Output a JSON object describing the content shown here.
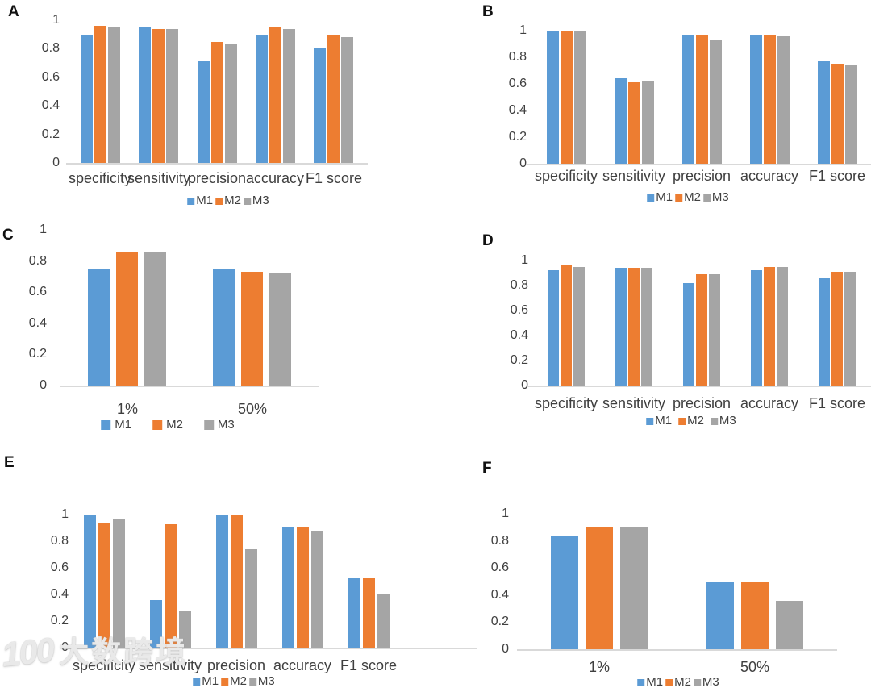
{
  "watermark": {
    "logo": "100",
    "text": "大数跨境"
  },
  "colors": {
    "M1": "#5B9BD5",
    "M2": "#ED7D31",
    "M3": "#A5A5A5",
    "axis_line": "#D9D9D9",
    "tick_text": "#404040",
    "category_text": "#3F3F3F",
    "legend_text": "#404040",
    "panel_letter": "#111111",
    "background": "#FFFFFF"
  },
  "legend_labels": [
    "M1",
    "M2",
    "M3"
  ],
  "chart_data": [
    {
      "panel": "A",
      "type": "bar",
      "categories": [
        "specificity",
        "sensitivity",
        "precision",
        "accuracy",
        "F1 score"
      ],
      "series": [
        {
          "name": "M1",
          "values": [
            0.89,
            0.95,
            0.71,
            0.89,
            0.81
          ]
        },
        {
          "name": "M2",
          "values": [
            0.96,
            0.94,
            0.85,
            0.95,
            0.89
          ]
        },
        {
          "name": "M3",
          "values": [
            0.95,
            0.94,
            0.83,
            0.94,
            0.88
          ]
        }
      ],
      "ylim": [
        0,
        1
      ],
      "yticks": [
        0,
        0.2,
        0.4,
        0.6,
        0.8,
        1
      ],
      "legend": [
        "M1",
        "M2",
        "M3"
      ],
      "legend_position": "bottom",
      "grid": false
    },
    {
      "panel": "B",
      "type": "bar",
      "categories": [
        "specificity",
        "sensitivity",
        "precision",
        "accuracy",
        "F1 score"
      ],
      "series": [
        {
          "name": "M1",
          "values": [
            1.0,
            0.64,
            0.97,
            0.97,
            0.77
          ]
        },
        {
          "name": "M2",
          "values": [
            1.0,
            0.61,
            0.97,
            0.97,
            0.75
          ]
        },
        {
          "name": "M3",
          "values": [
            1.0,
            0.62,
            0.93,
            0.96,
            0.74
          ]
        }
      ],
      "ylim": [
        0,
        1
      ],
      "yticks": [
        0,
        0.2,
        0.4,
        0.6,
        0.8,
        1
      ],
      "legend": [
        "M1",
        "M2",
        "M3"
      ],
      "legend_position": "bottom",
      "grid": false
    },
    {
      "panel": "C",
      "type": "bar",
      "categories": [
        "1%",
        "50%"
      ],
      "series": [
        {
          "name": "M1",
          "values": [
            0.75,
            0.75
          ]
        },
        {
          "name": "M2",
          "values": [
            0.86,
            0.73
          ]
        },
        {
          "name": "M3",
          "values": [
            0.86,
            0.72
          ]
        }
      ],
      "ylim": [
        0,
        1
      ],
      "yticks": [
        0,
        0.2,
        0.4,
        0.6,
        0.8,
        1
      ],
      "legend": [
        "M1",
        "M2",
        "M3"
      ],
      "legend_position": "bottom",
      "grid": false
    },
    {
      "panel": "D",
      "type": "bar",
      "categories": [
        "specificity",
        "sensitivity",
        "precision",
        "accuracy",
        "F1 score"
      ],
      "series": [
        {
          "name": "M1",
          "values": [
            0.92,
            0.94,
            0.82,
            0.92,
            0.86
          ]
        },
        {
          "name": "M2",
          "values": [
            0.96,
            0.94,
            0.89,
            0.95,
            0.91
          ]
        },
        {
          "name": "M3",
          "values": [
            0.95,
            0.94,
            0.89,
            0.95,
            0.91
          ]
        }
      ],
      "ylim": [
        0,
        1
      ],
      "yticks": [
        0,
        0.2,
        0.4,
        0.6,
        0.8,
        1
      ],
      "legend": [
        "M1",
        "M2",
        "M3"
      ],
      "legend_position": "bottom",
      "grid": false
    },
    {
      "panel": "E",
      "type": "bar",
      "categories": [
        "specificity",
        "sensitivity",
        "precision",
        "accuracy",
        "F1 score"
      ],
      "series": [
        {
          "name": "M1",
          "values": [
            1.0,
            0.36,
            1.0,
            0.91,
            0.53
          ]
        },
        {
          "name": "M2",
          "values": [
            0.94,
            0.93,
            1.0,
            0.91,
            0.53
          ]
        },
        {
          "name": "M3",
          "values": [
            0.97,
            0.27,
            0.74,
            0.88,
            0.4
          ]
        }
      ],
      "ylim": [
        0,
        1
      ],
      "yticks": [
        0,
        0.2,
        0.4,
        0.6,
        0.8,
        1
      ],
      "legend": [
        "M1",
        "M2",
        "M3"
      ],
      "legend_position": "bottom",
      "grid": false
    },
    {
      "panel": "F",
      "type": "bar",
      "categories": [
        "1%",
        "50%"
      ],
      "series": [
        {
          "name": "M1",
          "values": [
            0.84,
            0.5
          ]
        },
        {
          "name": "M2",
          "values": [
            0.9,
            0.5
          ]
        },
        {
          "name": "M3",
          "values": [
            0.9,
            0.36
          ]
        }
      ],
      "ylim": [
        0,
        1
      ],
      "yticks": [
        0,
        0.2,
        0.4,
        0.6,
        0.8,
        1
      ],
      "legend": [
        "M1",
        "M2",
        "M3"
      ],
      "legend_position": "bottom",
      "grid": false
    }
  ]
}
